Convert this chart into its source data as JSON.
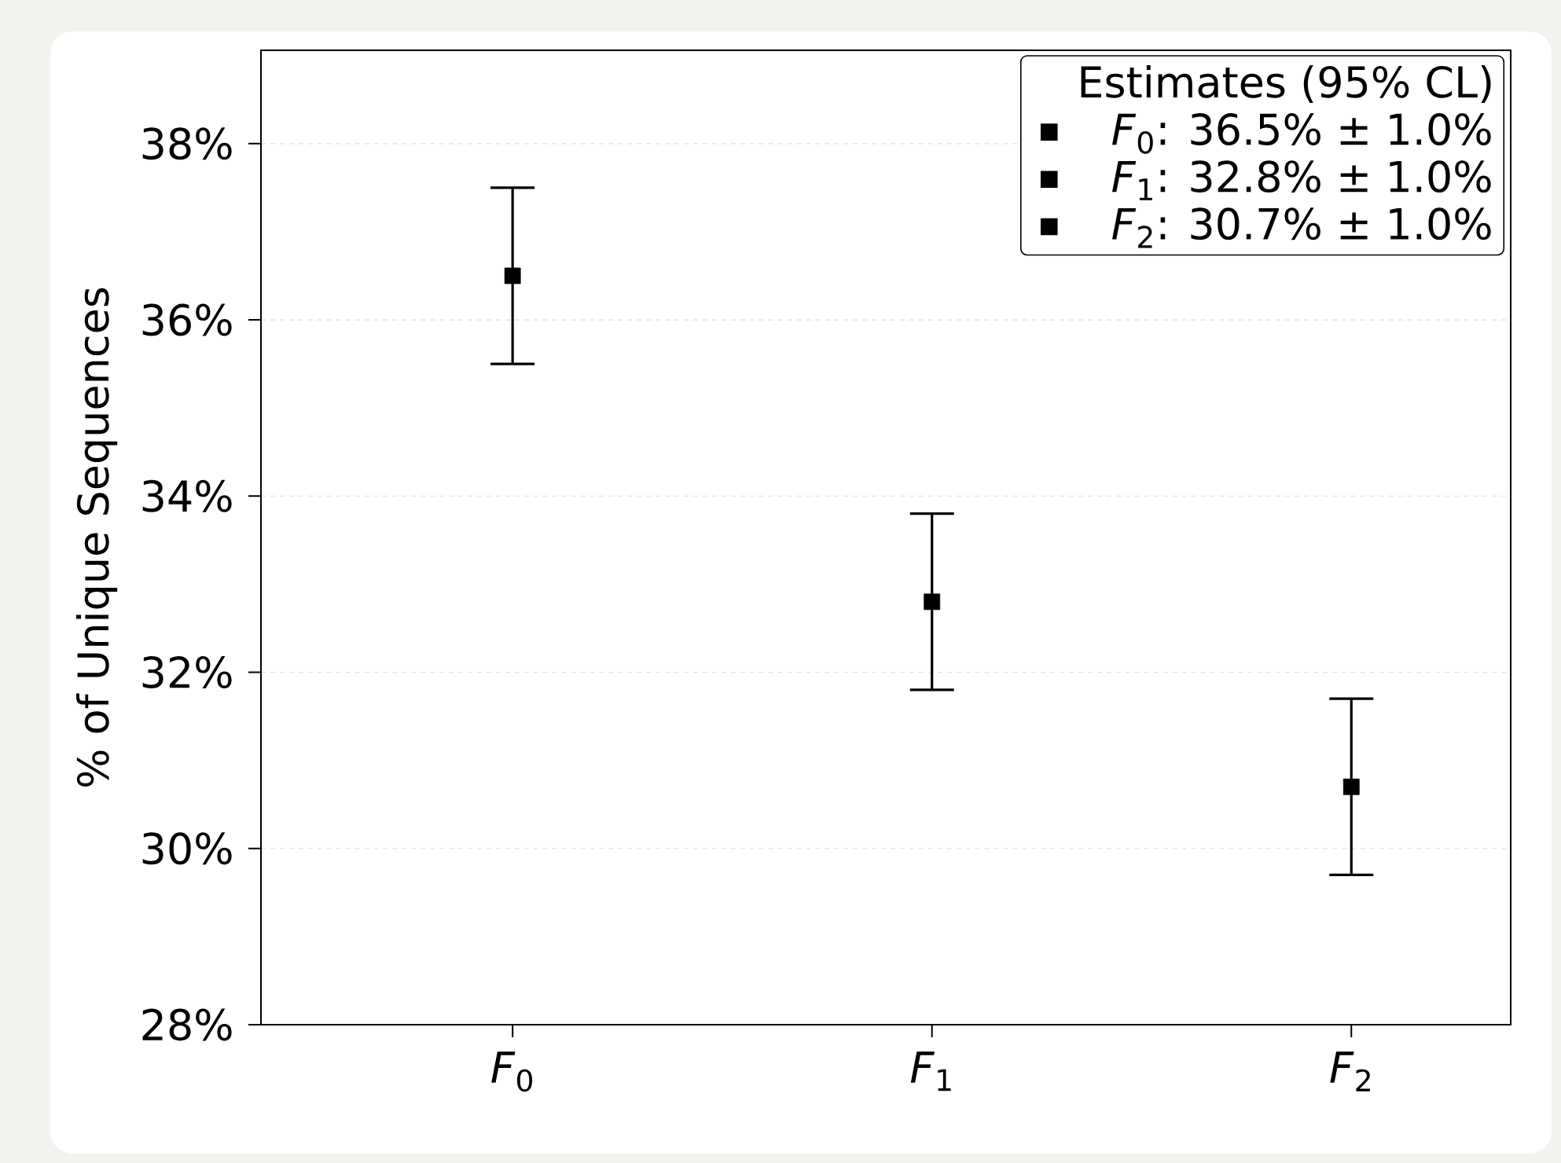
{
  "chart_data": {
    "type": "scatter",
    "categories": [
      "*F*$_{0}$",
      "*F*$_{1}$",
      "*F*$_{2}$"
    ],
    "ylabel": "% of Unique Sequences",
    "legend_title": "Estimates (95% CL)",
    "ylim": [
      28,
      39.06
    ],
    "yticks": [
      {
        "value": 28,
        "label": "28%"
      },
      {
        "value": 30,
        "label": "30%"
      },
      {
        "value": 32,
        "label": "32%"
      },
      {
        "value": 34,
        "label": "34%"
      },
      {
        "value": 36,
        "label": "36%"
      },
      {
        "value": 38,
        "label": "38%"
      }
    ],
    "grid": "y",
    "legend": "top right",
    "marker": "square",
    "series": [
      {
        "name": "*F*$_{0}$: 36.5% ± 1.0%",
        "color": "#000000",
        "values": [
          36.5,
          null,
          null
        ],
        "errors": [
          1.0,
          null,
          null
        ]
      },
      {
        "name": "*F*$_{1}$: 32.8% ± 1.0%",
        "color": "#000000",
        "values": [
          null,
          32.8,
          null
        ],
        "errors": [
          null,
          1.0,
          null
        ]
      },
      {
        "name": "*F*$_{2}$: 30.7% ± 1.0%",
        "color": "#000000",
        "values": [
          null,
          null,
          30.7
        ],
        "errors": [
          null,
          null,
          1.0
        ]
      }
    ]
  }
}
